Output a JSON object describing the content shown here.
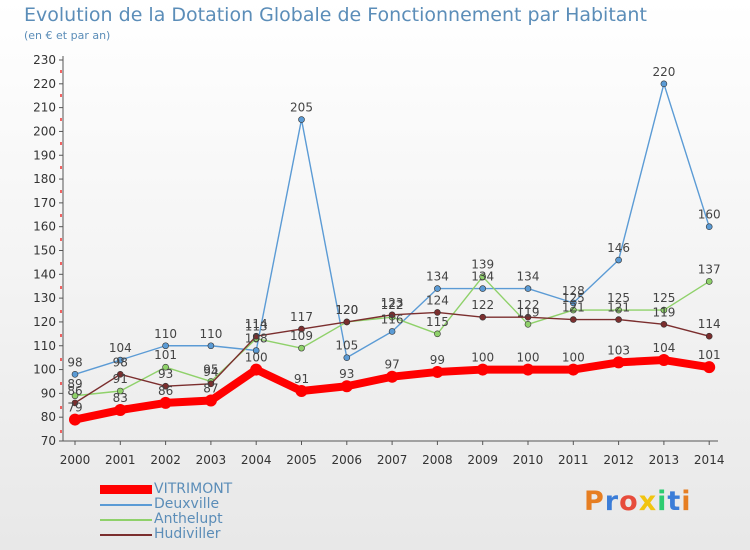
{
  "title": "Evolution de la Dotation Globale de Fonctionnement par Habitant",
  "subtitle": "(en € et par an)",
  "logo": {
    "letters": [
      "P",
      "r",
      "o",
      "x",
      "i",
      "t",
      "i"
    ],
    "colors": [
      "#e67e22",
      "#3b7dd8",
      "#e74c3c",
      "#f1c40f",
      "#2ecc71",
      "#3b7dd8",
      "#e67e22"
    ]
  },
  "chart_data": {
    "type": "line",
    "x": [
      "2000",
      "2001",
      "2002",
      "2003",
      "2004",
      "2005",
      "2006",
      "2007",
      "2008",
      "2009",
      "2010",
      "2011",
      "2012",
      "2013",
      "2014"
    ],
    "yticks": [
      "70",
      "80",
      "90",
      "100",
      "110",
      "120",
      "130",
      "140",
      "150",
      "160",
      "170",
      "180",
      "190",
      "200",
      "210",
      "220",
      "230"
    ],
    "ylim": [
      70,
      230
    ],
    "grid": false,
    "legend_position": "bottom-left",
    "series": [
      {
        "name": "VITRIMONT",
        "color": "#ff0000",
        "values": [
          79,
          83,
          86,
          87,
          100,
          91,
          93,
          97,
          99,
          100,
          100,
          100,
          103,
          104,
          101
        ]
      },
      {
        "name": "Deuxville",
        "color": "#5b9bd5",
        "values": [
          98,
          104,
          110,
          110,
          108,
          205,
          105,
          116,
          134,
          134,
          134,
          128,
          146,
          220,
          160
        ]
      },
      {
        "name": "Anthelupt",
        "color": "#8fd16a",
        "values": [
          89,
          91,
          101,
          95,
          113,
          109,
          120,
          122,
          115,
          139,
          119,
          125,
          125,
          125,
          137
        ]
      },
      {
        "name": "Hudiviller",
        "color": "#7b2e2e",
        "values": [
          86,
          98,
          93,
          94,
          114,
          117,
          120,
          123,
          124,
          122,
          122,
          121,
          121,
          119,
          114
        ]
      }
    ]
  }
}
